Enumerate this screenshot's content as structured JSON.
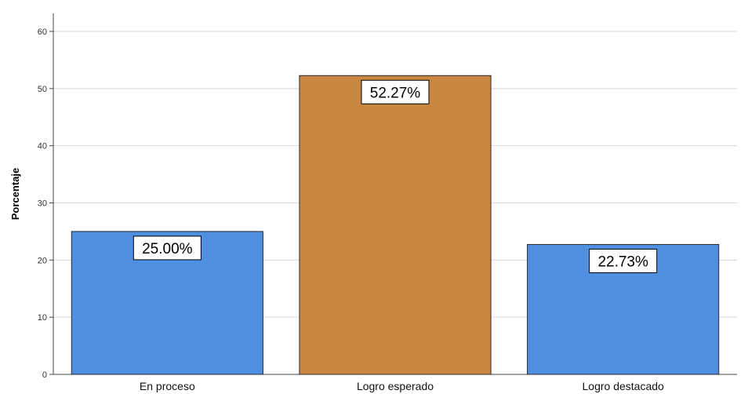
{
  "chart_data": {
    "type": "bar",
    "categories": [
      "En proceso",
      "Logro esperado",
      "Logro destacado"
    ],
    "values": [
      25.0,
      52.27,
      22.73
    ],
    "data_labels": [
      "25.00%",
      "52.27%",
      "22.73%"
    ],
    "colors": [
      "#4f8fe0",
      "#c98640",
      "#4f8fe0"
    ],
    "ylabel": "Porcentaje",
    "ylim": [
      0,
      60
    ],
    "yticks": [
      "0",
      "10",
      "20",
      "30",
      "40",
      "50",
      "60"
    ],
    "grid": true
  }
}
